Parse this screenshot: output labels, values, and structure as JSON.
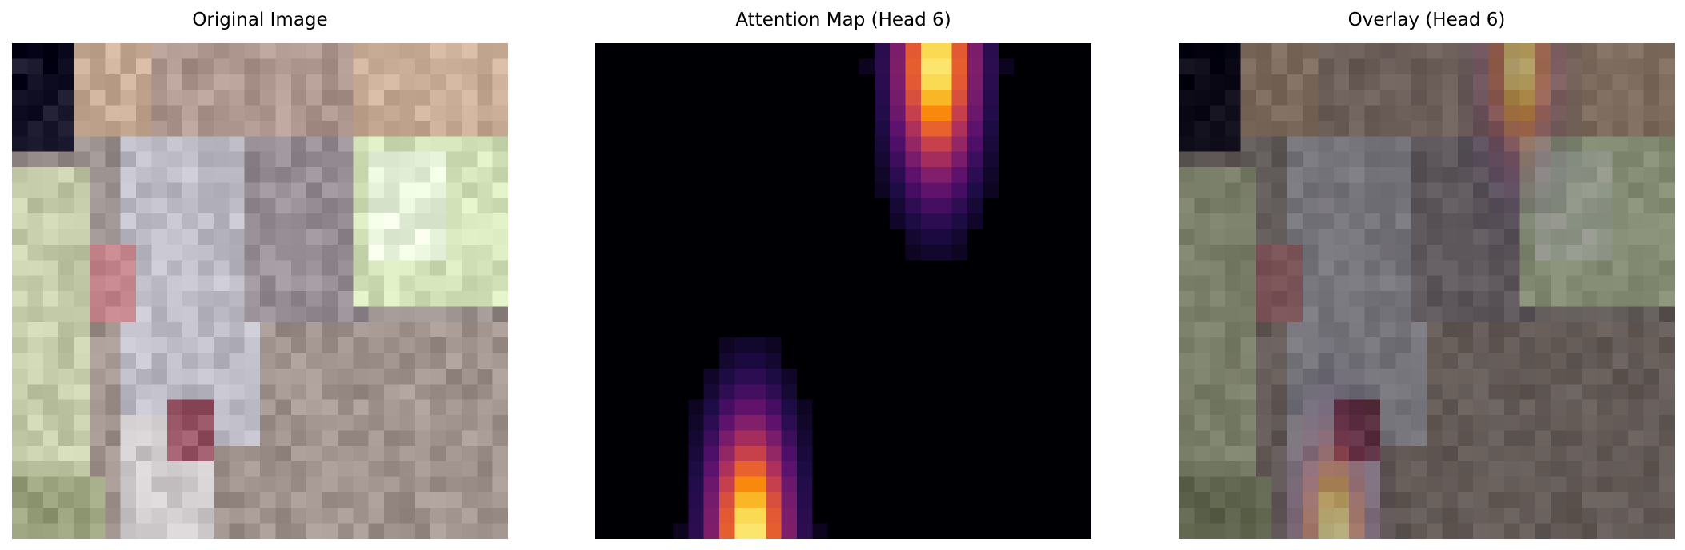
{
  "panels": [
    {
      "title": "Original Image"
    },
    {
      "title": "Attention Map (Head 6)"
    },
    {
      "title": "Overlay (Head 6)"
    }
  ]
}
